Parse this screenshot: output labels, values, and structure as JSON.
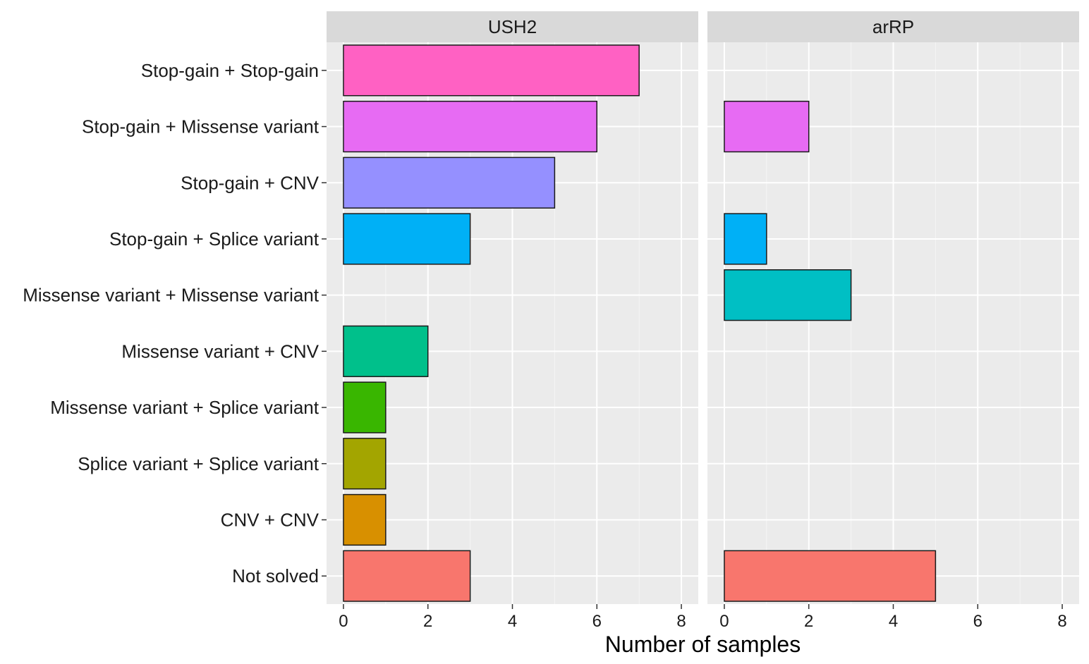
{
  "chart_data": {
    "type": "bar",
    "orientation": "horizontal",
    "facets": [
      "USH2",
      "arRP"
    ],
    "categories": [
      "Stop-gain + Stop-gain",
      "Stop-gain + Missense variant",
      "Stop-gain + CNV",
      "Stop-gain + Splice variant",
      "Missense variant + Missense variant",
      "Missense variant + CNV",
      "Missense variant + Splice variant",
      "Splice variant + Splice variant",
      "CNV + CNV",
      "Not solved"
    ],
    "colors": [
      "#FF61C3",
      "#E76BF3",
      "#9590FF",
      "#00B0F6",
      "#00BFC4",
      "#00C08B",
      "#39B600",
      "#A3A500",
      "#D89000",
      "#F8766D"
    ],
    "series": [
      {
        "name": "USH2",
        "values": [
          7,
          6,
          5,
          3,
          0,
          2,
          1,
          1,
          1,
          3
        ]
      },
      {
        "name": "arRP",
        "values": [
          0,
          2,
          0,
          1,
          3,
          0,
          0,
          0,
          0,
          5
        ]
      }
    ],
    "xlabel": "Number of samples",
    "ylabel": "",
    "xlim": [
      -0.4,
      8.4
    ],
    "xticks": [
      0,
      2,
      4,
      6,
      8
    ],
    "grid": true,
    "legend": "none"
  }
}
